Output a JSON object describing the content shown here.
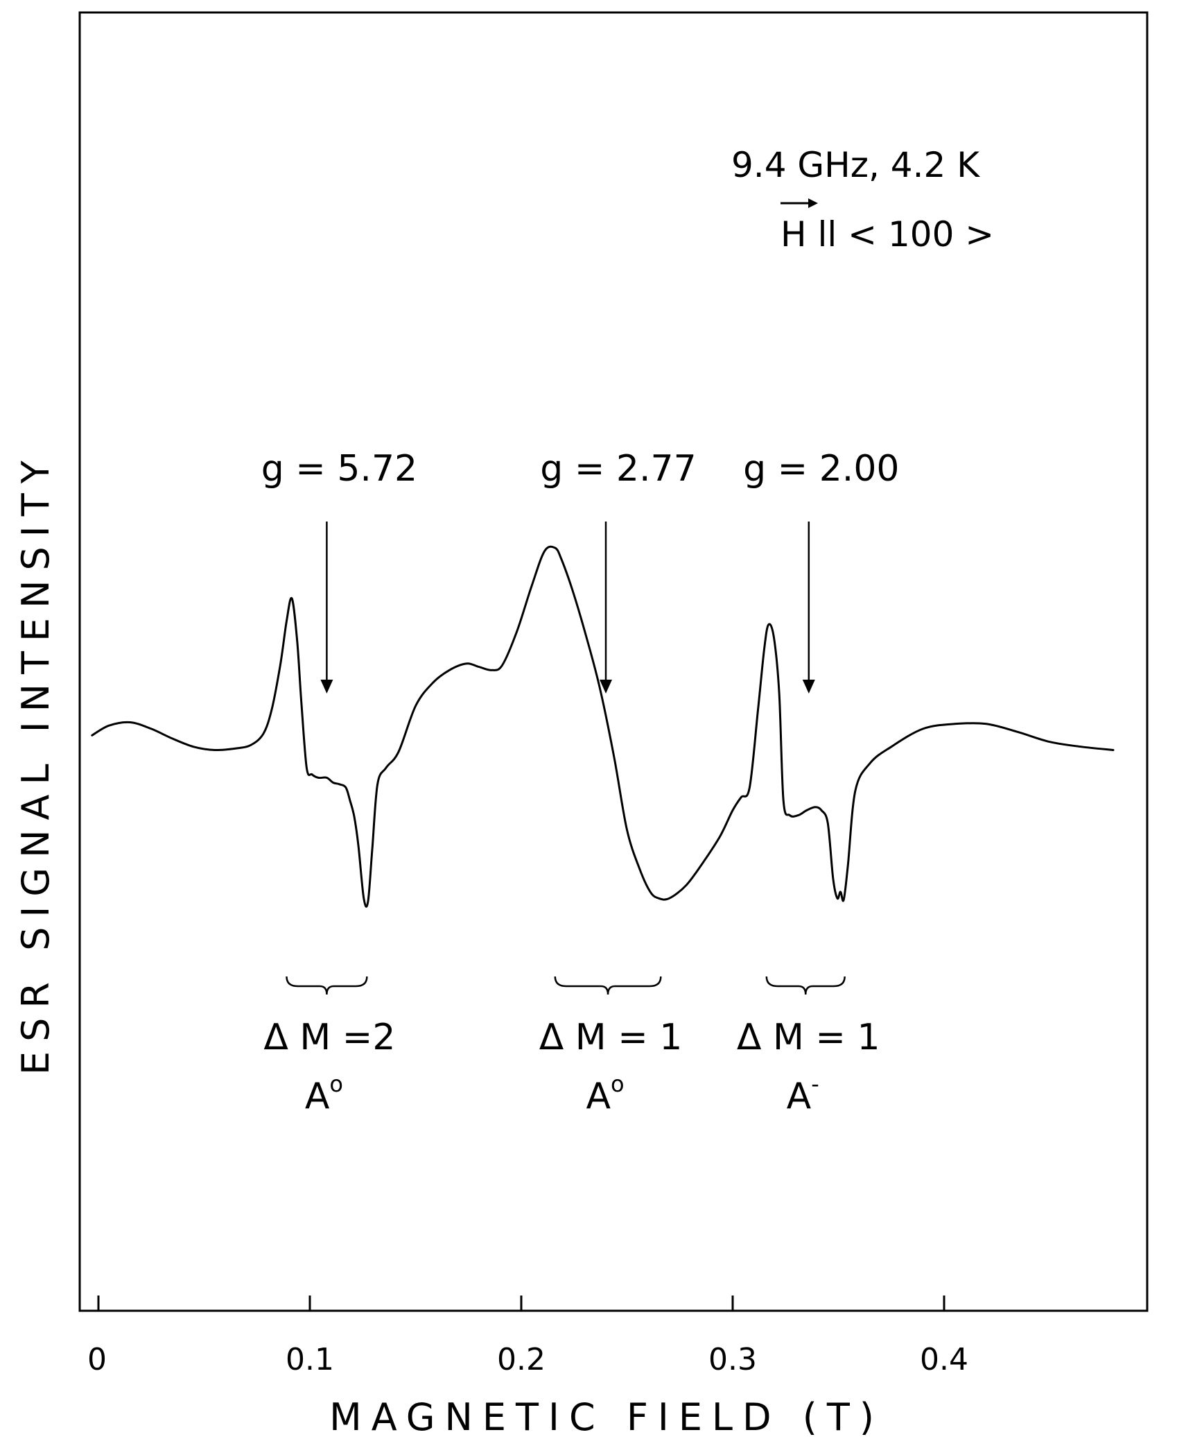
{
  "chart_data": {
    "type": "line",
    "title": "",
    "xlabel": "MAGNETIC   FIELD (T)",
    "ylabel": "ESR   SIGNAL   INTENSITY",
    "xlim": [
      -0.005,
      0.49
    ],
    "ylim": [
      -1.2,
      1.2
    ],
    "grid": false,
    "x_ticks": [
      0,
      0.1,
      0.2,
      0.3,
      0.4
    ],
    "x_tick_labels": [
      "0",
      "0.1",
      "0.2",
      "0.3",
      "0.4"
    ],
    "conditions": {
      "line1": "9.4 GHz, 4.2 K",
      "line2_prefix": "H",
      "line2_rest": " ll < 100 >"
    },
    "series": [
      {
        "x": [
          -0.003,
          0.005,
          0.015,
          0.025,
          0.035,
          0.045,
          0.055,
          0.065,
          0.072,
          0.078,
          0.082,
          0.086,
          0.089,
          0.0915,
          0.094,
          0.096,
          0.0985,
          0.101,
          0.104,
          0.108,
          0.111,
          0.114,
          0.117,
          0.119,
          0.121,
          0.123,
          0.1255,
          0.1275,
          0.1295,
          0.132,
          0.136,
          0.142,
          0.15,
          0.158,
          0.166,
          0.174,
          0.18,
          0.186,
          0.191,
          0.198,
          0.205,
          0.211,
          0.216,
          0.219,
          0.224,
          0.23,
          0.237,
          0.244,
          0.25,
          0.256,
          0.261,
          0.265,
          0.27,
          0.278,
          0.286,
          0.294,
          0.3,
          0.304,
          0.308,
          0.312,
          0.315,
          0.317,
          0.3195,
          0.322,
          0.324,
          0.327,
          0.331,
          0.335,
          0.339,
          0.342,
          0.345,
          0.3475,
          0.3495,
          0.351,
          0.3525,
          0.3545,
          0.358,
          0.365,
          0.375,
          0.39,
          0.405,
          0.42,
          0.435,
          0.45,
          0.465,
          0.48
        ],
        "y": [
          0.02,
          0.08,
          0.1,
          0.06,
          0.0,
          -0.05,
          -0.07,
          -0.06,
          -0.04,
          0.03,
          0.18,
          0.45,
          0.72,
          0.86,
          0.6,
          0.22,
          -0.18,
          -0.22,
          -0.24,
          -0.24,
          -0.27,
          -0.28,
          -0.3,
          -0.38,
          -0.48,
          -0.66,
          -0.98,
          -1.0,
          -0.68,
          -0.28,
          -0.18,
          -0.08,
          0.2,
          0.34,
          0.42,
          0.46,
          0.44,
          0.42,
          0.45,
          0.66,
          0.94,
          1.15,
          1.17,
          1.1,
          0.92,
          0.66,
          0.32,
          -0.12,
          -0.56,
          -0.8,
          -0.94,
          -0.98,
          -0.98,
          -0.9,
          -0.76,
          -0.6,
          -0.44,
          -0.36,
          -0.3,
          0.18,
          0.56,
          0.7,
          0.62,
          0.28,
          -0.38,
          -0.47,
          -0.47,
          -0.44,
          -0.42,
          -0.44,
          -0.52,
          -0.86,
          -0.98,
          -0.94,
          -0.99,
          -0.78,
          -0.32,
          -0.15,
          -0.05,
          0.06,
          0.09,
          0.09,
          0.04,
          -0.02,
          -0.05,
          -0.07
        ]
      }
    ],
    "annotations": [
      {
        "label": "g = 5.72",
        "x": 0.108,
        "bracket": [
          0.089,
          0.127
        ],
        "transition": "Δ M =2",
        "species": "A",
        "species_sup": "o"
      },
      {
        "label": "g = 2.77",
        "x": 0.24,
        "bracket": [
          0.216,
          0.266
        ],
        "transition": "Δ M = 1",
        "species": "A",
        "species_sup": "o"
      },
      {
        "label": "g = 2.00",
        "x": 0.336,
        "bracket": [
          0.316,
          0.353
        ],
        "transition": "Δ M = 1",
        "species": "A",
        "species_sup": "-"
      }
    ]
  }
}
